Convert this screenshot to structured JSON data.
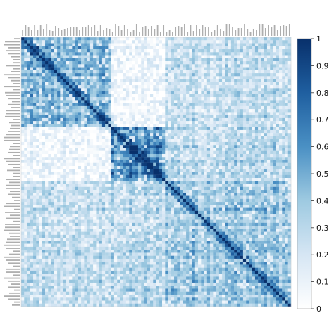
{
  "chart_data": {
    "type": "heatmap",
    "title": "",
    "xlabel": "",
    "ylabel": "",
    "matrix_size": 90,
    "diagonal_value": 1,
    "value_range": [
      0,
      1
    ],
    "colormap": [
      "#ffffff",
      "#d6e6f4",
      "#9ecae1",
      "#4a90c4",
      "#1f5fa0",
      "#08306b"
    ],
    "groups": [
      {
        "start": 0,
        "end": 29,
        "within": 0.45,
        "note": "upper-left block, moderate correlation"
      },
      {
        "start": 30,
        "end": 47,
        "within": 0.62,
        "note": "central block, strongest correlation"
      },
      {
        "start": 48,
        "end": 89,
        "within": 0.42,
        "note": "lower-right block, moderate correlation"
      }
    ],
    "between_group_mean": [
      [
        0.45,
        0.08,
        0.28
      ],
      [
        0.08,
        0.62,
        0.32
      ],
      [
        0.28,
        0.32,
        0.42
      ]
    ],
    "row_labels_note": "90 variable names printed vertically along the top and left edges; illegible at source resolution",
    "colorbar": {
      "ticks": [
        "0",
        "0.1",
        "0.2",
        "0.3",
        "0.4",
        "0.5",
        "0.6",
        "0.7",
        "0.8",
        "0.9",
        "1"
      ],
      "min": 0,
      "max": 1
    }
  }
}
